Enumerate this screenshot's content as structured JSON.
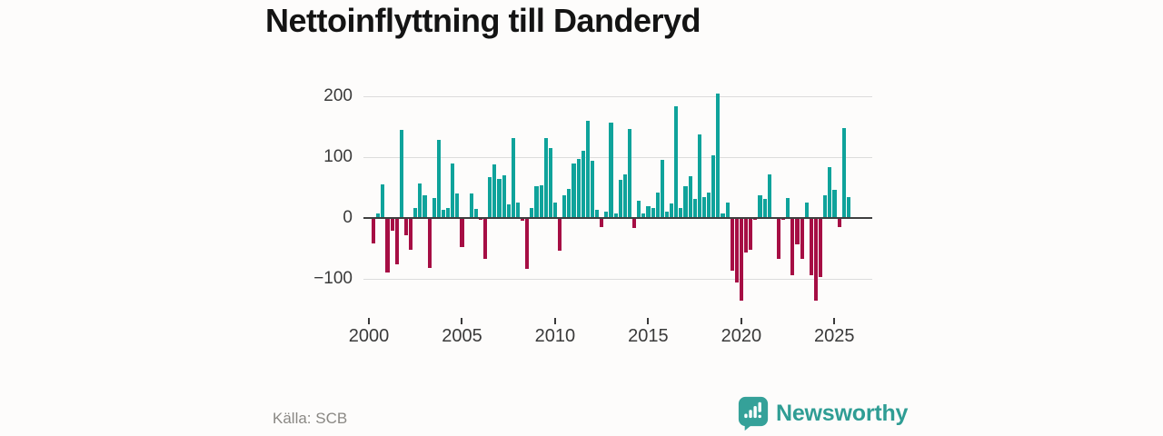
{
  "title": "Nettoinflyttning till Danderyd",
  "source_label": "Källa: SCB",
  "brand": {
    "name": "Newsworthy",
    "color": "#2f9d94",
    "icon": "newsworthy-speech-bubble-chart-icon",
    "icon_color": "#35a199"
  },
  "colors": {
    "positive_bar": "#0fa39b",
    "negative_bar": "#a60e44",
    "gridline": "#dcdcdc",
    "zero_line": "#3f3f3f",
    "axis_text": "#3a3a3a",
    "title_text": "#141414",
    "background": "#fdfcfb"
  },
  "chart_data": {
    "type": "bar",
    "title": "Nettoinflyttning till Danderyd",
    "frequency": "quarterly",
    "start_period": "2000-Q1",
    "end_period": "2025-Q3",
    "xlabel": "",
    "ylabel": "",
    "ylim": [
      -150,
      217
    ],
    "grid": "horizontal",
    "legend": "none",
    "x_tick_labels": [
      "2000",
      "2005",
      "2010",
      "2015",
      "2020",
      "2025"
    ],
    "y_ticks": [
      200,
      100,
      0,
      -100
    ],
    "y_tick_labels": [
      "200",
      "100",
      "0",
      "−100"
    ],
    "values": [
      -40,
      7,
      55,
      -88,
      -20,
      -75,
      145,
      -27,
      -51,
      16,
      56,
      38,
      -80,
      33,
      129,
      13,
      17,
      90,
      40,
      -46,
      2,
      41,
      15,
      -2,
      -65,
      67,
      88,
      64,
      70,
      22,
      131,
      26,
      -3,
      -82,
      17,
      52,
      54,
      132,
      115,
      25,
      -52,
      37,
      48,
      89,
      97,
      111,
      159,
      94,
      13,
      -13,
      11,
      157,
      8,
      62,
      72,
      147,
      -15,
      28,
      7,
      20,
      17,
      42,
      95,
      11,
      24,
      184,
      17,
      52,
      68,
      32,
      137,
      35,
      42,
      103,
      204,
      7,
      25,
      -85,
      -105,
      -135,
      -55,
      -50,
      -2,
      38,
      32,
      71,
      2,
      -65,
      -2,
      33,
      -93,
      -42,
      -65,
      25,
      -93,
      -135,
      -95,
      37,
      83,
      47,
      -14,
      148,
      34
    ]
  }
}
